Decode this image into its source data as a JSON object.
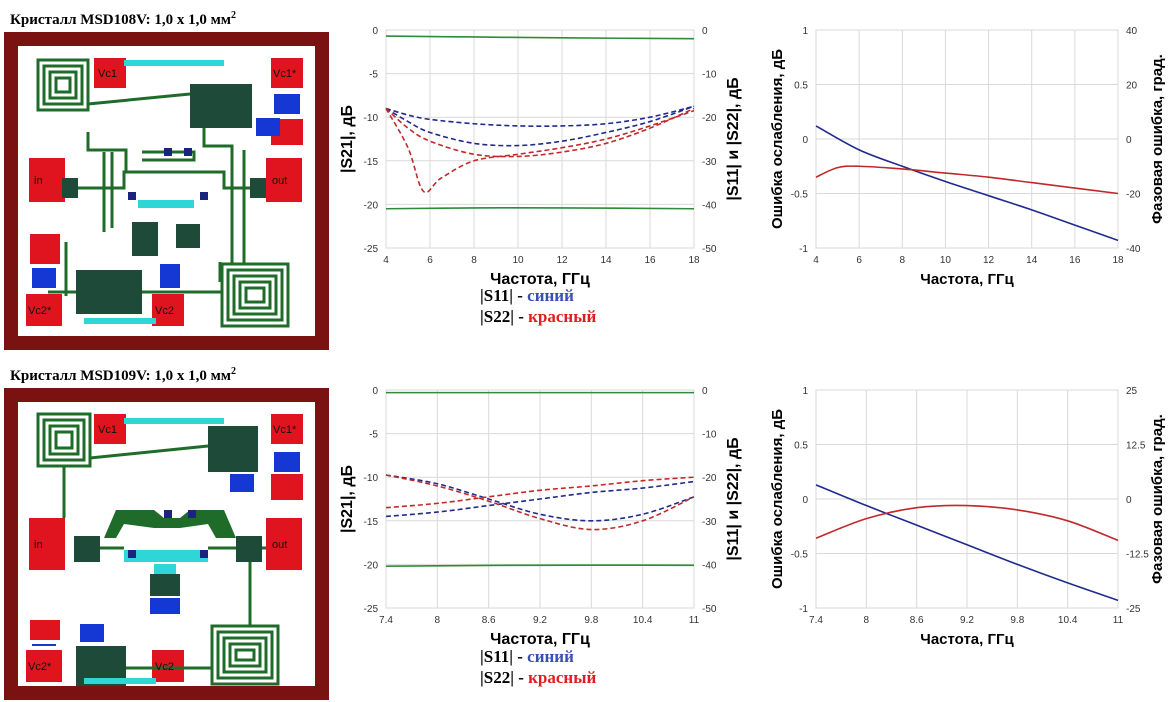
{
  "chips": [
    {
      "title": "Кристалл MSD108V: 1,0 х 1,0 мм",
      "title_sup": "2",
      "labels": {
        "vc1": "Vc1",
        "vc1s": "Vc1*",
        "in": "in",
        "out": "out",
        "vc2s": "Vc2*",
        "vc2": "Vc2"
      }
    },
    {
      "title": "Кристалл MSD109V: 1,0 х 1,0 мм",
      "title_sup": "2",
      "labels": {
        "vc1": "Vc1",
        "vc1s": "Vc1*",
        "in": "in",
        "out": "out",
        "vc2s": "Vc2*",
        "vc2": "Vc2"
      }
    }
  ],
  "legends": [
    {
      "s11_label": "|S11| - ",
      "s11_color": "синий",
      "s22_label": "|S22| - ",
      "s22_color": "красный"
    },
    {
      "s11_label": "|S11| - ",
      "s11_color": "синий",
      "s22_label": "|S22| - ",
      "s22_color": "красный"
    }
  ],
  "colors": {
    "blue": "#1f2a8c",
    "red": "#c0292b",
    "green": "#2e8b3a",
    "grid": "#d9d9d9"
  },
  "chart_data": [
    {
      "type": "line",
      "xlabel": "Частота, ГГц",
      "ylabel_left": "|S21|, дБ",
      "ylabel_right": "|S11| и |S22|, дБ",
      "x_ticks": [
        "4",
        "6",
        "8",
        "10",
        "12",
        "14",
        "16",
        "18"
      ],
      "xlim": [
        4,
        18
      ],
      "y_left_ticks": [
        "0",
        "-5",
        "-10",
        "-15",
        "-20",
        "-25"
      ],
      "ylim_left": [
        -25,
        0
      ],
      "y_right_ticks": [
        "0",
        "-10",
        "-20",
        "-30",
        "-40",
        "-50"
      ],
      "ylim_right": [
        -50,
        0
      ],
      "grid": true,
      "series": [
        {
          "axis": "left",
          "color": "green",
          "dash": false,
          "x": [
            4,
            8,
            12,
            18
          ],
          "y": [
            -0.7,
            -0.8,
            -0.9,
            -1.0
          ]
        },
        {
          "axis": "left",
          "color": "green",
          "dash": false,
          "x": [
            4,
            8,
            12,
            18
          ],
          "y": [
            -20.5,
            -20.4,
            -20.4,
            -20.5
          ]
        },
        {
          "axis": "right",
          "color": "blue",
          "dash": true,
          "x": [
            4,
            5,
            6,
            8,
            10,
            12,
            14,
            16,
            18
          ],
          "y": [
            -18,
            -19.5,
            -20.5,
            -21.5,
            -22,
            -22,
            -21.5,
            -20,
            -17.5
          ]
        },
        {
          "axis": "right",
          "color": "blue",
          "dash": true,
          "x": [
            4,
            5,
            6,
            8,
            10,
            12,
            14,
            16,
            18
          ],
          "y": [
            -18,
            -21,
            -23.5,
            -26,
            -26.5,
            -25.5,
            -23.5,
            -21,
            -17.5
          ]
        },
        {
          "axis": "right",
          "color": "red",
          "dash": true,
          "x": [
            4,
            5,
            5.7,
            6.5,
            8,
            10,
            12,
            14,
            16,
            18
          ],
          "y": [
            -18,
            -27,
            -37,
            -34,
            -30,
            -28.5,
            -27,
            -25,
            -22,
            -18.5
          ]
        },
        {
          "axis": "right",
          "color": "red",
          "dash": true,
          "x": [
            4,
            5,
            6,
            8,
            10,
            12,
            14,
            16,
            18
          ],
          "y": [
            -18,
            -22.5,
            -25.5,
            -28.5,
            -29,
            -28,
            -26,
            -22.5,
            -18
          ]
        }
      ]
    },
    {
      "type": "line",
      "xlabel": "Частота, ГГц",
      "ylabel_left": "Ошибка ослабления, дБ",
      "ylabel_right": "Фазовая ошибка, град.",
      "x_ticks": [
        "4",
        "6",
        "8",
        "10",
        "12",
        "14",
        "16",
        "18"
      ],
      "xlim": [
        4,
        18
      ],
      "y_left_ticks": [
        "1",
        "0.5",
        "0",
        "-0.5",
        "-1"
      ],
      "ylim_left": [
        -1,
        1
      ],
      "y_right_ticks": [
        "40",
        "20",
        "0",
        "-20",
        "-40"
      ],
      "ylim_right": [
        -40,
        40
      ],
      "grid": true,
      "series": [
        {
          "axis": "left",
          "color": "blue",
          "dash": false,
          "x": [
            4,
            6,
            8,
            10,
            12,
            14,
            16,
            18
          ],
          "y": [
            0.12,
            -0.1,
            -0.25,
            -0.39,
            -0.52,
            -0.65,
            -0.79,
            -0.93
          ]
        },
        {
          "axis": "right",
          "color": "red",
          "dash": false,
          "x": [
            4,
            5,
            6,
            8,
            10,
            12,
            14,
            16,
            18
          ],
          "y": [
            -14,
            -10.5,
            -10,
            -11,
            -12.5,
            -14,
            -16,
            -18,
            -20
          ]
        }
      ]
    },
    {
      "type": "line",
      "xlabel": "Частота, ГГц",
      "ylabel_left": "|S21|, дБ",
      "ylabel_right": "|S11| и |S22|, дБ",
      "x_ticks": [
        "7.4",
        "8",
        "8.6",
        "9.2",
        "9.8",
        "10.4",
        "11"
      ],
      "xlim": [
        7.4,
        11
      ],
      "y_left_ticks": [
        "0",
        "-5",
        "-10",
        "-15",
        "-20",
        "-25"
      ],
      "ylim_left": [
        -25,
        0
      ],
      "y_right_ticks": [
        "0",
        "-10",
        "-20",
        "-30",
        "-40",
        "-50"
      ],
      "ylim_right": [
        -50,
        0
      ],
      "grid": true,
      "series": [
        {
          "axis": "left",
          "color": "green",
          "dash": false,
          "x": [
            7.4,
            9,
            11
          ],
          "y": [
            -0.3,
            -0.3,
            -0.3
          ]
        },
        {
          "axis": "left",
          "color": "green",
          "dash": false,
          "x": [
            7.4,
            9,
            11
          ],
          "y": [
            -20.2,
            -20.1,
            -20.1
          ]
        },
        {
          "axis": "right",
          "color": "blue",
          "dash": true,
          "x": [
            7.4,
            8,
            8.6,
            9.2,
            9.8,
            10.4,
            11
          ],
          "y": [
            -29,
            -28,
            -26.5,
            -25,
            -23.5,
            -22.5,
            -21
          ]
        },
        {
          "axis": "right",
          "color": "blue",
          "dash": true,
          "x": [
            7.4,
            8,
            8.6,
            9.2,
            9.8,
            10.4,
            11
          ],
          "y": [
            -19.5,
            -21.5,
            -25,
            -28.5,
            -30,
            -28.5,
            -24.5
          ]
        },
        {
          "axis": "right",
          "color": "red",
          "dash": true,
          "x": [
            7.4,
            8,
            8.6,
            9.2,
            9.8,
            10.4,
            11
          ],
          "y": [
            -27,
            -26,
            -24.5,
            -23,
            -22,
            -20.8,
            -20
          ]
        },
        {
          "axis": "right",
          "color": "red",
          "dash": true,
          "x": [
            7.4,
            8,
            8.6,
            9.2,
            9.8,
            10.4,
            11
          ],
          "y": [
            -19.5,
            -22,
            -25.5,
            -29.5,
            -32,
            -30,
            -24.5
          ]
        }
      ]
    },
    {
      "type": "line",
      "xlabel": "Частота, ГГц",
      "ylabel_left": "Ошибка ослабления, дБ",
      "ylabel_right": "Фазовая ошибка, град.",
      "x_ticks": [
        "7.4",
        "8",
        "8.6",
        "9.2",
        "9.8",
        "10.4",
        "11"
      ],
      "xlim": [
        7.4,
        11
      ],
      "y_left_ticks": [
        "1",
        "0.5",
        "0",
        "-0.5",
        "-1"
      ],
      "ylim_left": [
        -1,
        1
      ],
      "y_right_ticks": [
        "25",
        "12.5",
        "0",
        "-12.5",
        "-25"
      ],
      "ylim_right": [
        -25,
        25
      ],
      "grid": true,
      "series": [
        {
          "axis": "left",
          "color": "blue",
          "dash": false,
          "x": [
            7.4,
            8,
            8.6,
            9.2,
            9.8,
            10.4,
            11
          ],
          "y": [
            0.13,
            -0.06,
            -0.24,
            -0.42,
            -0.6,
            -0.77,
            -0.93
          ]
        },
        {
          "axis": "right",
          "color": "red",
          "dash": false,
          "x": [
            7.4,
            8,
            8.6,
            9.2,
            9.8,
            10.4,
            11
          ],
          "y": [
            -9,
            -4.5,
            -2,
            -1.5,
            -2.5,
            -5,
            -9.5
          ]
        }
      ]
    }
  ]
}
